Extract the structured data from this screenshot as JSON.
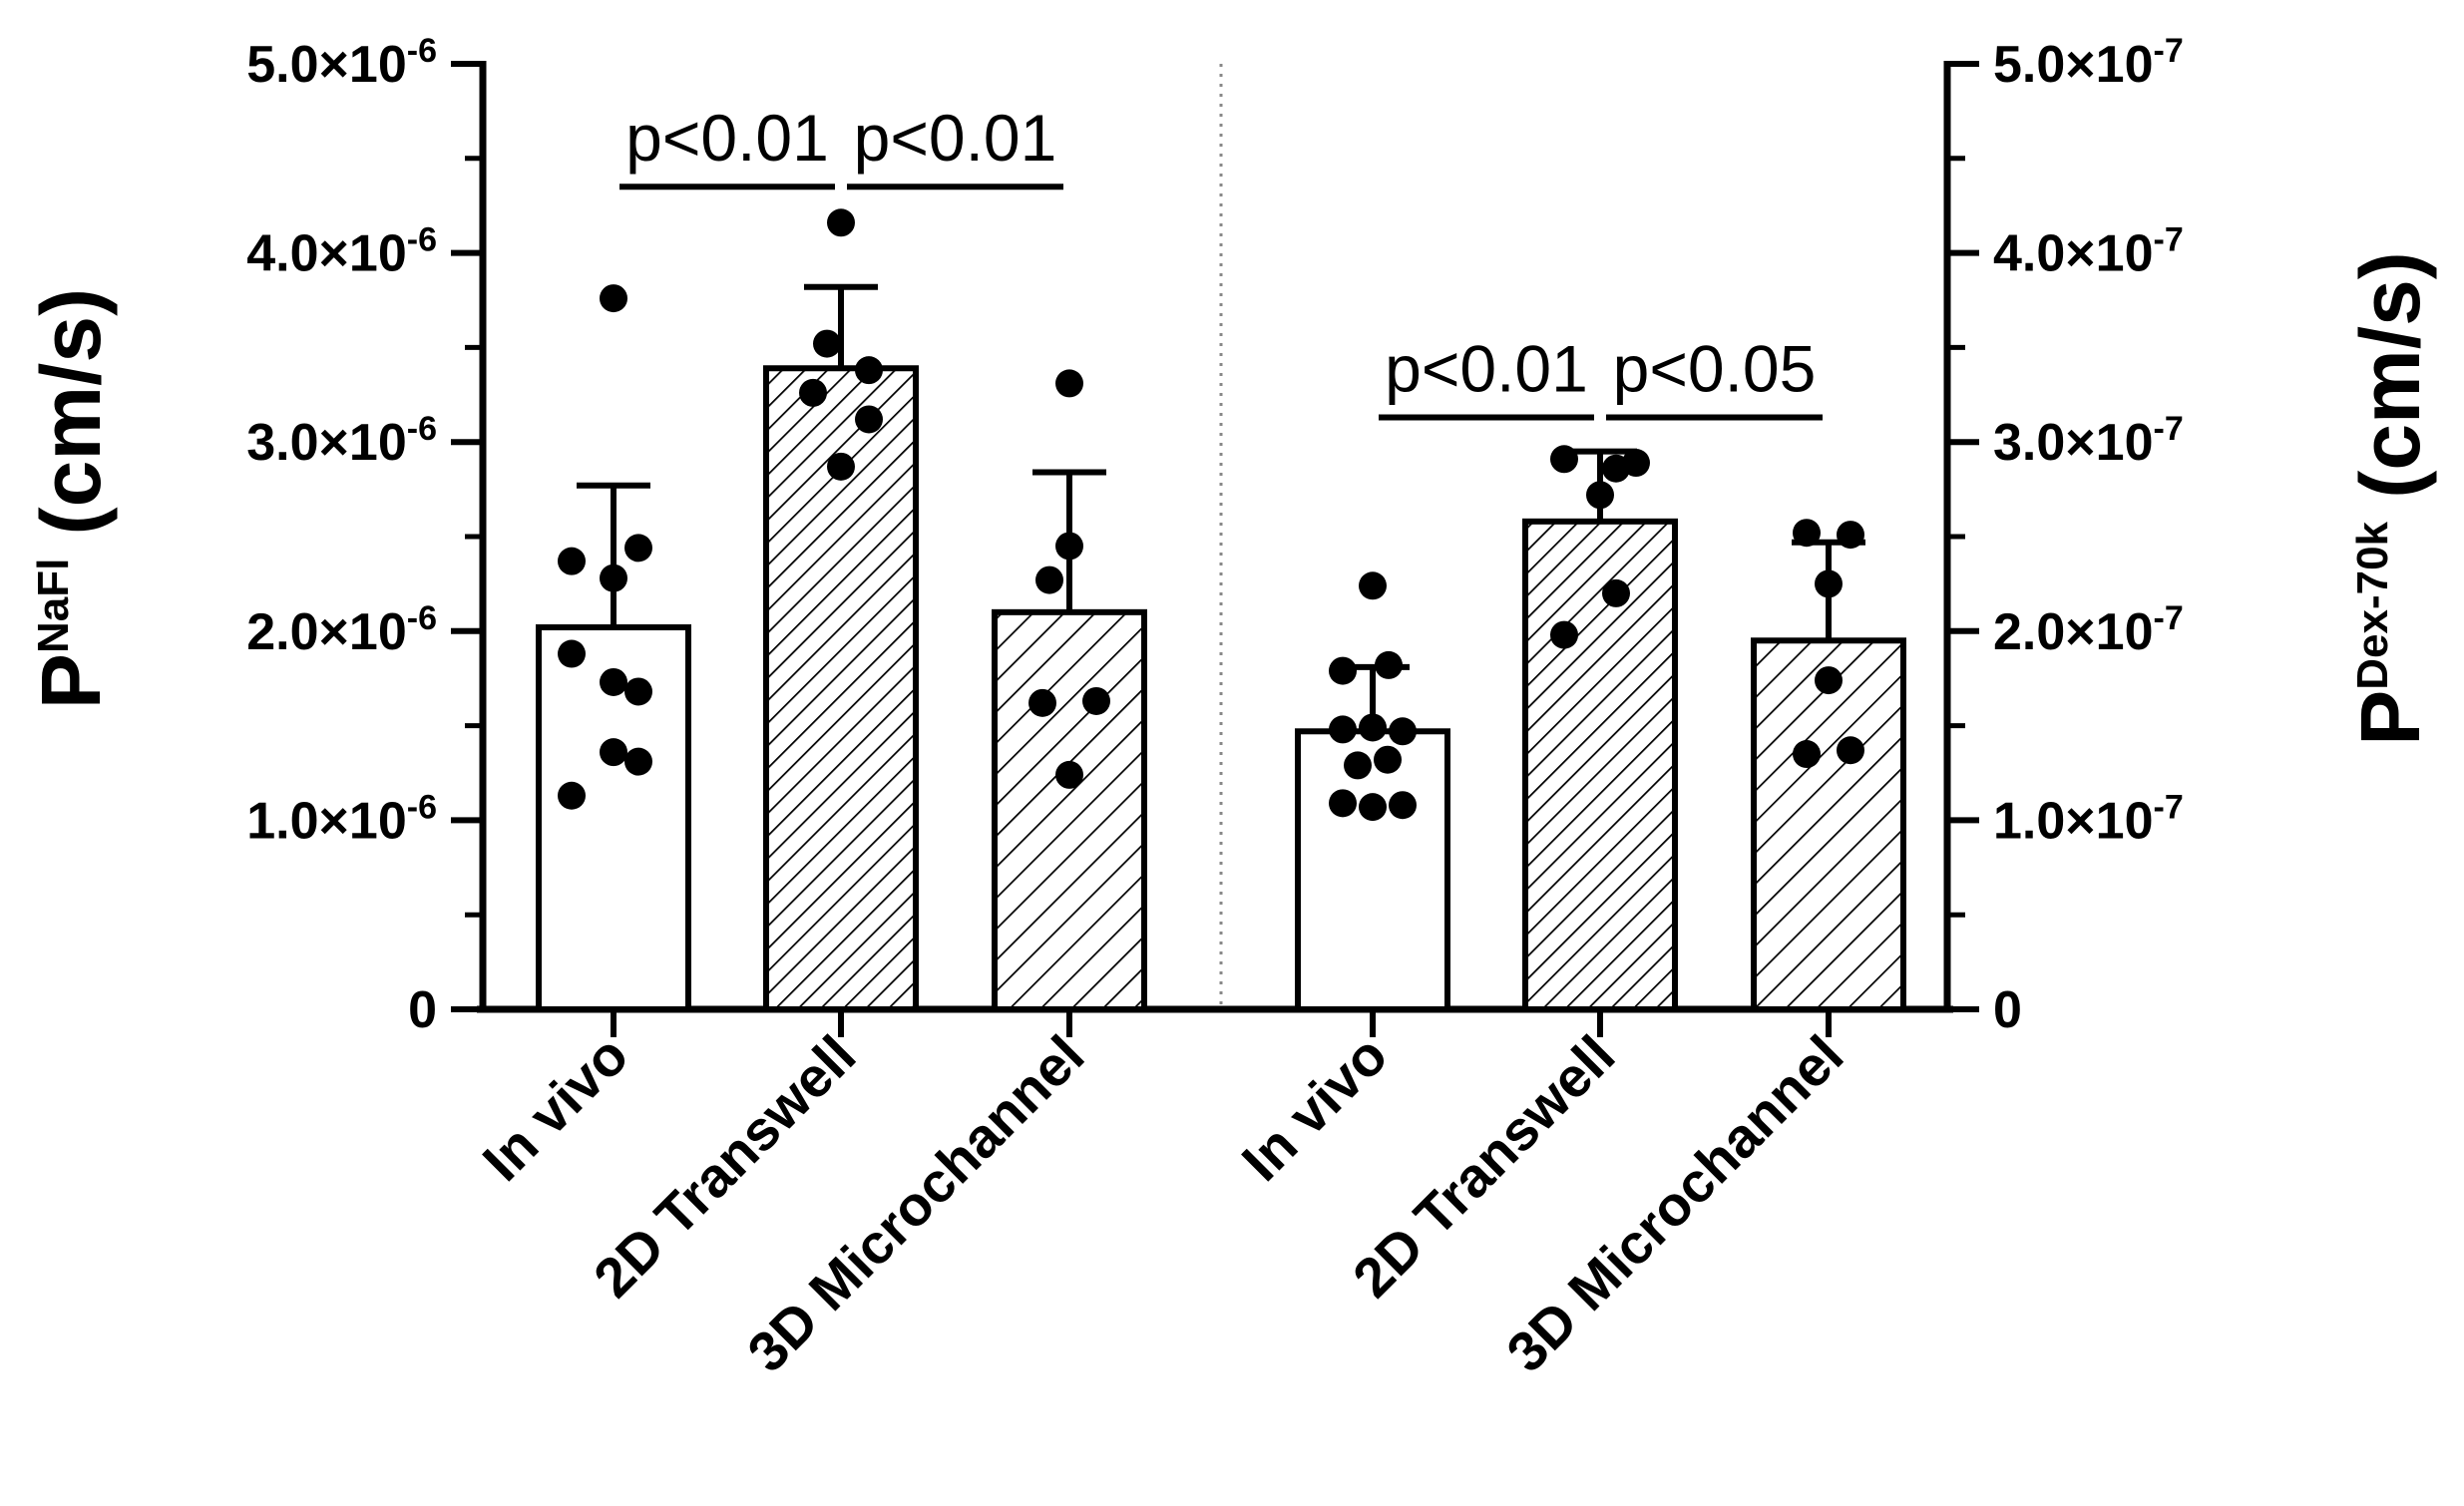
{
  "chart_data": {
    "type": "bar",
    "panels": [
      {
        "name": "NaFl",
        "ylabel_main": "P",
        "ylabel_sub": "NaFl",
        "ylabel_unit": "(cm/s)",
        "axis_side": "left",
        "ylim": [
          0,
          5e-06
        ],
        "ticks": [
          {
            "value": 0,
            "label": "0",
            "exp": ""
          },
          {
            "value": 1e-06,
            "label": "1.0×10",
            "exp": "-6"
          },
          {
            "value": 2e-06,
            "label": "2.0×10",
            "exp": "-6"
          },
          {
            "value": 3e-06,
            "label": "3.0×10",
            "exp": "-6"
          },
          {
            "value": 4e-06,
            "label": "4.0×10",
            "exp": "-6"
          },
          {
            "value": 5e-06,
            "label": "5.0×10",
            "exp": "-6"
          }
        ],
        "bars": [
          {
            "category": "In vivo",
            "mean": 2.02e-06,
            "sd_upper": 2.77e-06,
            "pattern": "none",
            "points": [
              3.76e-06,
              2.44e-06,
              2.37e-06,
              2.28e-06,
              1.88e-06,
              1.73e-06,
              1.68e-06,
              1.36e-06,
              1.31e-06,
              1.13e-06
            ]
          },
          {
            "category": "2D Transwell",
            "mean": 3.39e-06,
            "sd_upper": 3.82e-06,
            "pattern": "dense",
            "points": [
              4.16e-06,
              3.52e-06,
              3.38e-06,
              3.26e-06,
              3.12e-06,
              2.87e-06
            ]
          },
          {
            "category": "3D Microchannel",
            "mean": 2.1e-06,
            "sd_upper": 2.84e-06,
            "pattern": "sparse",
            "points": [
              3.31e-06,
              2.45e-06,
              2.27e-06,
              1.63e-06,
              1.62e-06,
              1.24e-06
            ]
          }
        ],
        "comparisons": [
          {
            "from": 0,
            "to": 1,
            "y": 4.35e-06,
            "label": "p<0.01"
          },
          {
            "from": 1,
            "to": 2,
            "y": 4.35e-06,
            "label": "p<0.01"
          }
        ]
      },
      {
        "name": "Dex-70k",
        "ylabel_main": "P",
        "ylabel_sub": "Dex-70k",
        "ylabel_unit": "(cm/s)",
        "axis_side": "right",
        "ylim": [
          0,
          5e-07
        ],
        "ticks": [
          {
            "value": 0,
            "label": "0",
            "exp": ""
          },
          {
            "value": 1e-07,
            "label": "1.0×10",
            "exp": "-7"
          },
          {
            "value": 2e-07,
            "label": "2.0×10",
            "exp": "-7"
          },
          {
            "value": 3e-07,
            "label": "3.0×10",
            "exp": "-7"
          },
          {
            "value": 4e-07,
            "label": "4.0×10",
            "exp": "-7"
          },
          {
            "value": 5e-07,
            "label": "5.0×10",
            "exp": "-7"
          }
        ],
        "bars": [
          {
            "category": "In vivo",
            "mean": 1.47e-07,
            "sd_upper": 1.81e-07,
            "pattern": "none",
            "points": [
              2.24e-07,
              1.82e-07,
              1.79e-07,
              1.49e-07,
              1.48e-07,
              1.47e-07,
              1.32e-07,
              1.29e-07,
              1.09e-07,
              1.07e-07,
              1.08e-07
            ]
          },
          {
            "category": "2D Transwell",
            "mean": 2.58e-07,
            "sd_upper": 2.95e-07,
            "pattern": "dense",
            "points": [
              2.91e-07,
              2.89e-07,
              2.86e-07,
              2.72e-07,
              2.2e-07,
              1.98e-07
            ]
          },
          {
            "category": "3D Microchannel",
            "mean": 1.95e-07,
            "sd_upper": 2.47e-07,
            "pattern": "sparse",
            "points": [
              2.52e-07,
              2.51e-07,
              2.25e-07,
              1.74e-07,
              1.37e-07,
              1.35e-07
            ]
          }
        ],
        "comparisons": [
          {
            "from": 0,
            "to": 1,
            "y": 3.13e-07,
            "label": "p<0.01"
          },
          {
            "from": 1,
            "to": 2,
            "y": 3.13e-07,
            "label": "p<0.05"
          }
        ]
      }
    ]
  }
}
